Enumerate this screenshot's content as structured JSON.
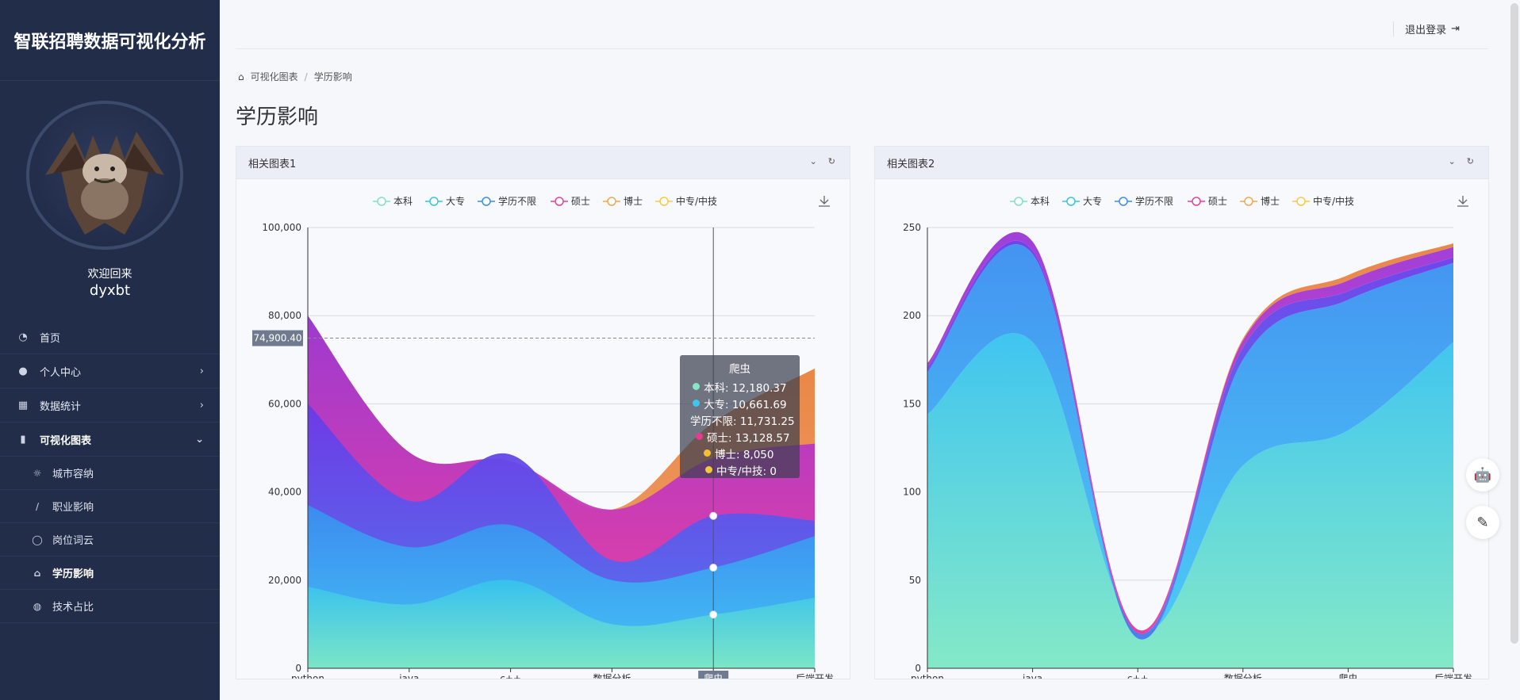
{
  "app": {
    "title": "智联招聘数据可视化分析"
  },
  "user": {
    "welcome": "欢迎回来",
    "name": "dyxbt"
  },
  "menu": [
    {
      "icon": "dashboard-icon",
      "glyph": "◔",
      "label": "首页",
      "chevron": ""
    },
    {
      "icon": "user-icon",
      "glyph": "●",
      "label": "个人中心",
      "chevron": "›"
    },
    {
      "icon": "grid-icon",
      "glyph": "▦",
      "label": "数据统计",
      "chevron": "›"
    },
    {
      "icon": "bar-chart-icon",
      "glyph": "▮",
      "label": "可视化图表",
      "chevron": "⌄"
    }
  ],
  "submenu": [
    {
      "icon": "sun-icon",
      "glyph": "☼",
      "label": "城市容纳"
    },
    {
      "icon": "feather-icon",
      "glyph": "∕",
      "label": "职业影响"
    },
    {
      "icon": "bulb-icon",
      "glyph": "◯",
      "label": "岗位词云"
    },
    {
      "icon": "graduation-cap-icon",
      "glyph": "⌂",
      "label": "学历影响"
    },
    {
      "icon": "basketball-icon",
      "glyph": "◍",
      "label": "技术占比"
    }
  ],
  "header": {
    "logout": "退出登录"
  },
  "breadcrumb": {
    "root": "可视化图表",
    "sep": "/",
    "current": "学历影响"
  },
  "page": {
    "title": "学历影响"
  },
  "cards": [
    {
      "title": "相关图表1"
    },
    {
      "title": "相关图表2"
    }
  ],
  "colors": {
    "sidebar": "#222d4a",
    "accent": "#3c8dbc"
  },
  "chart_data": [
    {
      "type": "area",
      "stacked": false,
      "categories": [
        "python",
        "java",
        "c++",
        "数据分析",
        "爬虫",
        "后端开发"
      ],
      "ylim": [
        0,
        100000
      ],
      "yticks": [
        "0",
        "20,000",
        "40,000",
        "60,000",
        "80,000",
        "100,000"
      ],
      "legend": [
        "本科",
        "大专",
        "学历不限",
        "硕士",
        "博士",
        "中专/中技"
      ],
      "legend_position": "top",
      "grid": true,
      "series": [
        {
          "name": "本科",
          "values": [
            18500,
            14500,
            20000,
            10000,
            12180.37,
            16000
          ]
        },
        {
          "name": "大专",
          "values": [
            37000,
            27500,
            32500,
            20000,
            22842.06,
            30000
          ]
        },
        {
          "name": "学历不限",
          "values": [
            60000,
            38000,
            48500,
            24500,
            34573.31,
            33500
          ]
        },
        {
          "name": "硕士",
          "values": [
            80000,
            49000,
            47000,
            36000,
            47701.88,
            51000
          ]
        },
        {
          "name": "博士",
          "values": [
            80000,
            49000,
            47000,
            36000,
            55751.88,
            68000
          ]
        },
        {
          "name": "中专/中技",
          "values": [
            80000,
            49000,
            47000,
            36000,
            55751.88,
            68000
          ]
        }
      ],
      "marker_label": "74,900.40",
      "axis_pointer_category": "爬虫",
      "tooltip": {
        "title": "爬虫",
        "rows": [
          {
            "name": "本科",
            "value": "12,180.37"
          },
          {
            "name": "大专",
            "value": "10,661.69"
          },
          {
            "name": "学历不限",
            "value": "11,731.25"
          },
          {
            "name": "硕士",
            "value": "13,128.57"
          },
          {
            "name": "博士",
            "value": "8,050"
          },
          {
            "name": "中专/中技",
            "value": "0"
          }
        ]
      }
    },
    {
      "type": "area",
      "stacked": true,
      "categories": [
        "python",
        "java",
        "c++",
        "数据分析",
        "爬虫",
        "后端开发"
      ],
      "ylim": [
        0,
        250
      ],
      "yticks": [
        "0",
        "50",
        "100",
        "150",
        "200",
        "250"
      ],
      "legend": [
        "本科",
        "大专",
        "学历不限",
        "硕士",
        "博士",
        "中专/中技"
      ],
      "legend_position": "top",
      "grid": true,
      "series": [
        {
          "name": "本科",
          "values": [
            144,
            185,
            22,
            115,
            135,
            185
          ]
        },
        {
          "name": "大专",
          "values": [
            24,
            50,
            -5,
            60,
            74,
            45
          ]
        },
        {
          "name": "学历不限",
          "values": [
            3,
            2,
            3,
            7,
            5,
            3
          ]
        },
        {
          "name": "硕士",
          "values": [
            2,
            5,
            2,
            4,
            6,
            6
          ]
        },
        {
          "name": "博士",
          "values": [
            0,
            0,
            0,
            1,
            3,
            2
          ]
        },
        {
          "name": "中专/中技",
          "values": [
            0,
            0,
            0,
            0,
            0,
            0
          ]
        }
      ]
    }
  ]
}
